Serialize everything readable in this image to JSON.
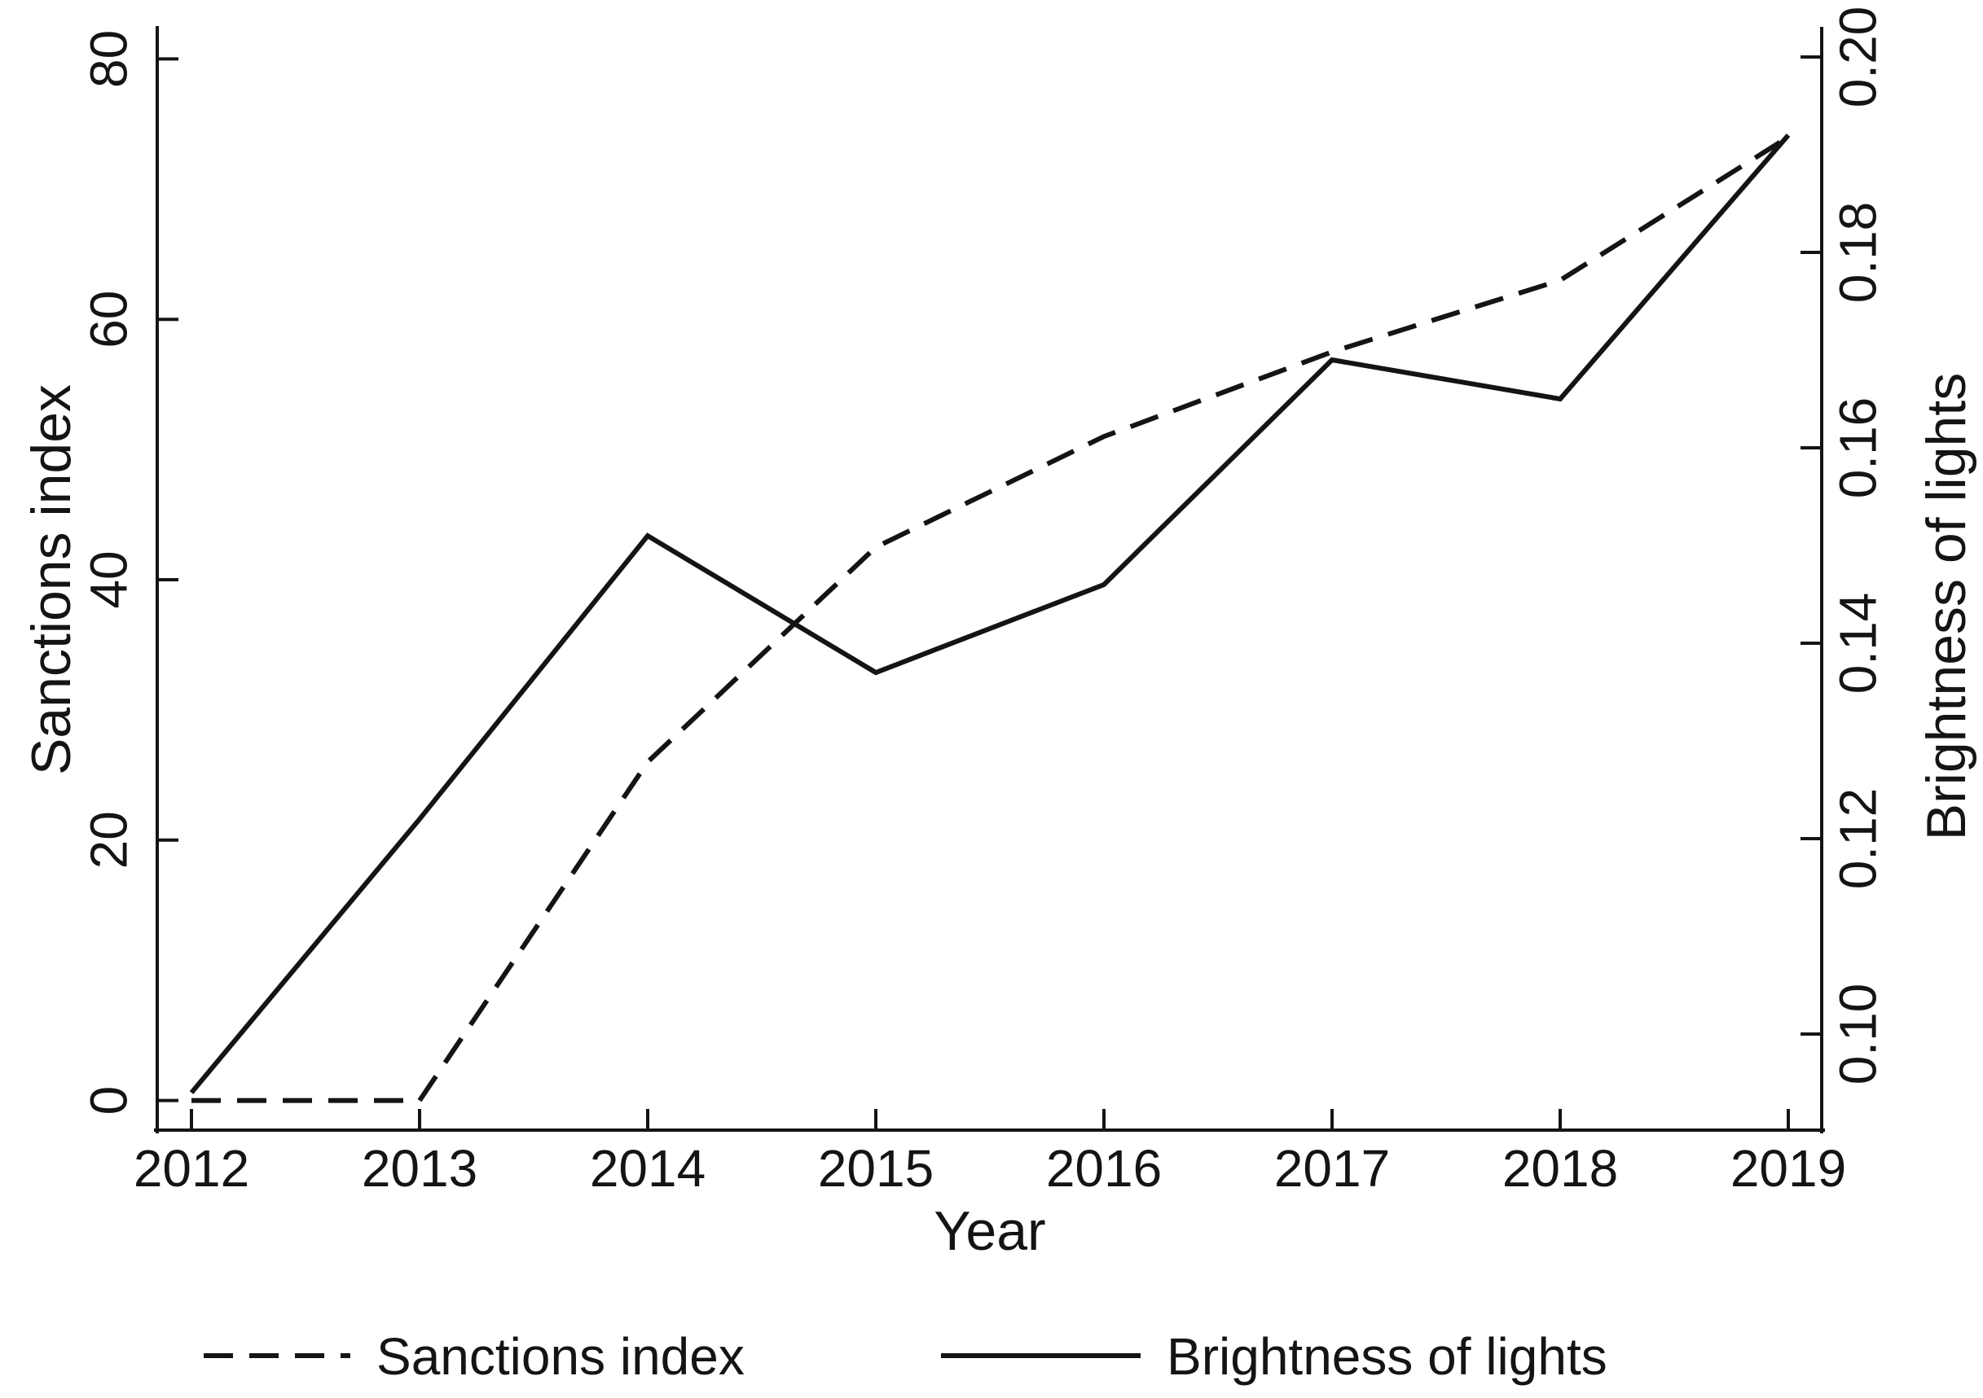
{
  "colors": {
    "foreground": "#141414",
    "background": "#ffffff"
  },
  "chart_data": {
    "type": "line",
    "title": "",
    "grid": false,
    "x": [
      2012,
      2013,
      2014,
      2015,
      2016,
      2017,
      2018,
      2019
    ],
    "x_axis": {
      "label": "Year",
      "tick_labels": [
        "2012",
        "2013",
        "2014",
        "2015",
        "2016",
        "2017",
        "2018",
        "2019"
      ]
    },
    "left_axis": {
      "label": "Sanctions index",
      "ticks": [
        0,
        20,
        40,
        60,
        80
      ],
      "tick_labels": [
        "0",
        "20",
        "40",
        "60",
        "80"
      ],
      "range": [
        -2.4,
        82.4
      ]
    },
    "right_axis": {
      "label": "Brightness of lights",
      "ticks": [
        0.1,
        0.12,
        0.14,
        0.16,
        0.18,
        0.2
      ],
      "tick_labels": [
        "0.10",
        "0.12",
        "0.14",
        "0.16",
        "0.18",
        "0.20"
      ],
      "range": [
        0.09,
        0.203
      ]
    },
    "series": [
      {
        "name": "Sanctions index",
        "axis": "left",
        "line_style": "dashed",
        "color": "#141414",
        "values": [
          0,
          0,
          26,
          42.5,
          51,
          57.5,
          63,
          74
        ]
      },
      {
        "name": "Brightness of lights",
        "axis": "right",
        "line_style": "solid",
        "color": "#141414",
        "values": [
          0.094,
          0.122,
          0.151,
          0.137,
          0.146,
          0.169,
          0.165,
          0.192
        ]
      }
    ],
    "legend": {
      "position": "bottom",
      "entries": [
        "Sanctions index",
        "Brightness of lights"
      ]
    }
  }
}
